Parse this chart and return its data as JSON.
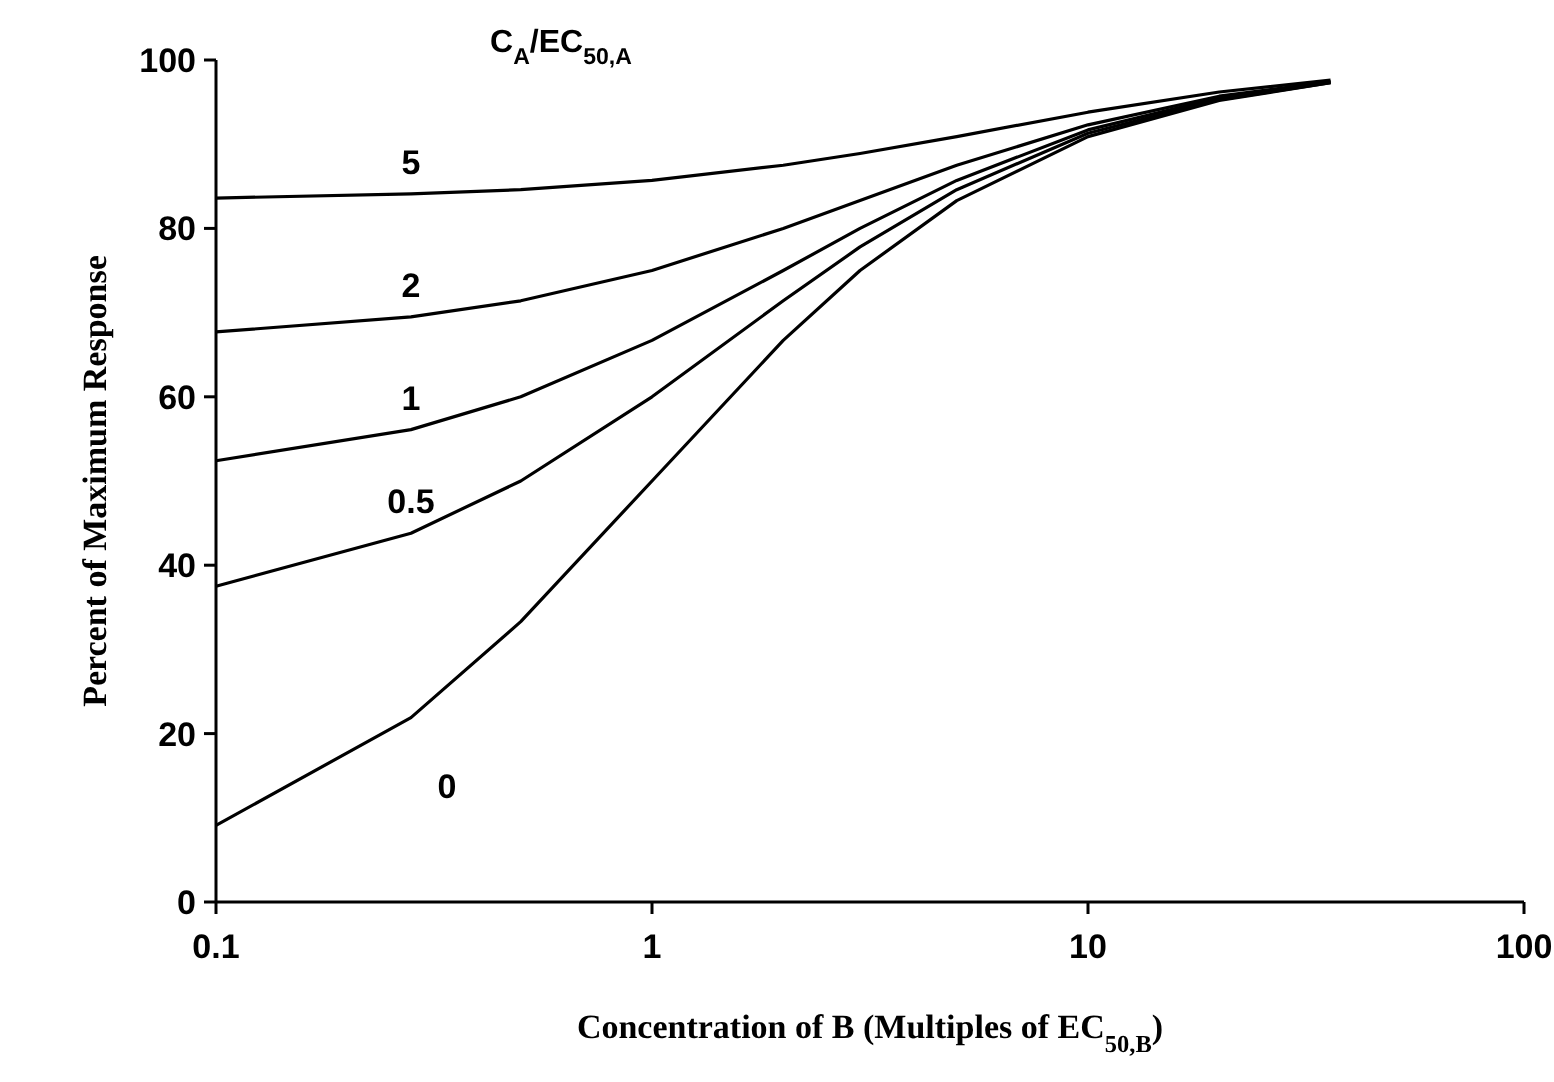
{
  "chart_data": {
    "type": "line",
    "xlabel": "Concentration of B (Multiples of EC$_{50,B}$)",
    "ylabel": "Percent of Maximum Response",
    "legend_title": "C$_{A}$/EC$_{50,A}$",
    "log": "x",
    "xlim": [
      0.1,
      100
    ],
    "xticks": [
      0.1,
      1,
      10,
      100
    ],
    "ylim": [
      0,
      100
    ],
    "yticks": [
      0,
      20,
      40,
      60,
      80,
      100
    ],
    "grid": false,
    "marker": "none",
    "line_style": "solid",
    "x": [
      0.1,
      0.28,
      0.5,
      1,
      2,
      3,
      5,
      10,
      20,
      36
    ],
    "series": [
      {
        "name": "5",
        "color": "#000000",
        "values": [
          83.6,
          84.1,
          84.6,
          85.7,
          87.5,
          88.9,
          90.9,
          93.8,
          96.2,
          97.6
        ]
      },
      {
        "name": "2",
        "color": "#000000",
        "values": [
          67.7,
          69.5,
          71.4,
          75,
          80,
          83.3,
          87.5,
          92.3,
          95.7,
          97.4
        ]
      },
      {
        "name": "1",
        "color": "#000000",
        "values": [
          52.4,
          56.1,
          60,
          66.7,
          75,
          80,
          85.7,
          91.7,
          95.5,
          97.4
        ]
      },
      {
        "name": "0.5",
        "color": "#000000",
        "values": [
          37.5,
          43.8,
          50,
          60,
          71.4,
          77.8,
          84.6,
          91.3,
          95.3,
          97.3
        ]
      },
      {
        "name": "0",
        "color": "#000000",
        "values": [
          9.1,
          21.9,
          33.3,
          50,
          66.7,
          75,
          83.3,
          90.9,
          95.2,
          97.3
        ]
      }
    ]
  }
}
